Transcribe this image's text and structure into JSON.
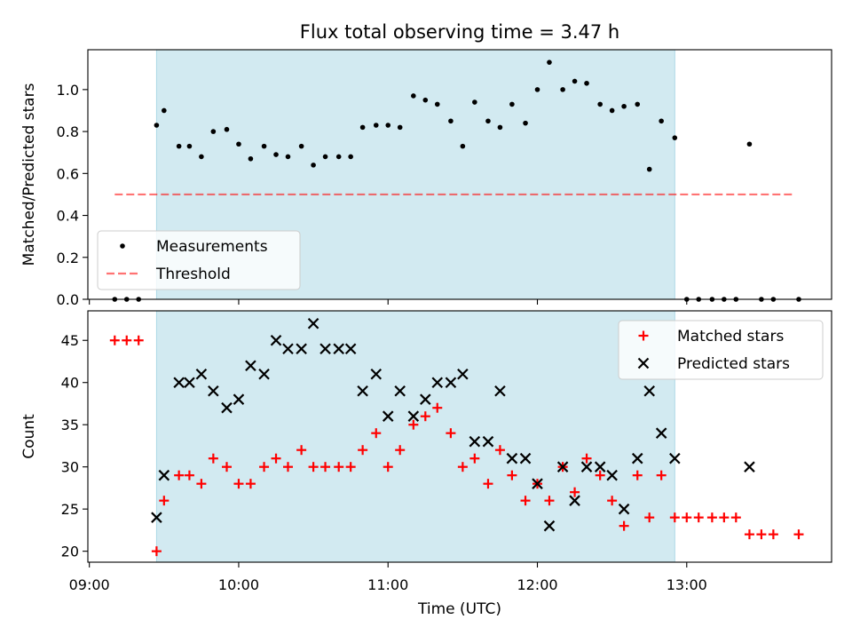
{
  "title": "Flux total observing time = 3.47 h",
  "x_axis": {
    "label": "Time (UTC)",
    "range_hours": [
      8.99,
      13.97
    ],
    "ticks": [
      {
        "value": 9,
        "label": "09:00"
      },
      {
        "value": 10,
        "label": "10:00"
      },
      {
        "value": 11,
        "label": "11:00"
      },
      {
        "value": 12,
        "label": "12:00"
      },
      {
        "value": 13,
        "label": "13:00"
      }
    ]
  },
  "observing_window_hours": [
    9.45,
    12.92
  ],
  "colors": {
    "window": "#add8e6",
    "measurements": "#000000",
    "threshold": "#ff0000",
    "matched": "#ff0000",
    "predicted": "#000000"
  },
  "chart_data": [
    {
      "type": "scatter",
      "ylabel": "Matched/Predicted stars",
      "ylim": [
        0,
        1.19
      ],
      "yticks": [
        "0.0",
        "0.2",
        "0.4",
        "0.6",
        "0.8",
        "1.0"
      ],
      "ytick_values": [
        0,
        0.2,
        0.4,
        0.6,
        0.8,
        1.0
      ],
      "legend_position": "lower-left",
      "series": [
        {
          "name": "Measurements",
          "marker": "dot",
          "x": [
            9.17,
            9.25,
            9.33,
            9.45,
            9.5,
            9.6,
            9.67,
            9.75,
            9.83,
            9.92,
            10.0,
            10.08,
            10.17,
            10.25,
            10.33,
            10.42,
            10.5,
            10.58,
            10.67,
            10.75,
            10.83,
            10.92,
            11.0,
            11.08,
            11.17,
            11.25,
            11.33,
            11.42,
            11.5,
            11.58,
            11.67,
            11.75,
            11.83,
            11.92,
            12.0,
            12.08,
            12.17,
            12.25,
            12.33,
            12.42,
            12.5,
            12.58,
            12.67,
            12.75,
            12.83,
            12.92,
            13.0,
            13.08,
            13.17,
            13.25,
            13.33,
            13.42,
            13.5,
            13.58,
            13.75
          ],
          "y": [
            0,
            0,
            0,
            0.83,
            0.9,
            0.73,
            0.73,
            0.68,
            0.8,
            0.81,
            0.74,
            0.67,
            0.73,
            0.69,
            0.68,
            0.73,
            0.64,
            0.68,
            0.68,
            0.68,
            0.82,
            0.83,
            0.83,
            0.82,
            0.97,
            0.95,
            0.93,
            0.85,
            0.73,
            0.94,
            0.85,
            0.82,
            0.93,
            0.84,
            1.0,
            1.13,
            1.0,
            1.04,
            1.03,
            0.93,
            0.9,
            0.92,
            0.93,
            0.62,
            0.85,
            0.77,
            0,
            0,
            0,
            0,
            0,
            0.74,
            0,
            0,
            0
          ]
        },
        {
          "name": "Threshold",
          "marker": "dashed-line",
          "x": [
            9.17,
            13.72
          ],
          "y": [
            0.5,
            0.5
          ]
        }
      ]
    },
    {
      "type": "scatter",
      "ylabel": "Count",
      "ylim": [
        18.7,
        48.5
      ],
      "yticks": [
        "20",
        "25",
        "30",
        "35",
        "40",
        "45"
      ],
      "ytick_values": [
        20,
        25,
        30,
        35,
        40,
        45
      ],
      "legend_position": "upper-right",
      "series": [
        {
          "name": "Matched stars",
          "marker": "plus",
          "x": [
            9.17,
            9.25,
            9.33,
            9.45,
            9.5,
            9.6,
            9.67,
            9.75,
            9.83,
            9.92,
            10.0,
            10.08,
            10.17,
            10.25,
            10.33,
            10.42,
            10.5,
            10.58,
            10.67,
            10.75,
            10.83,
            10.92,
            11.0,
            11.08,
            11.17,
            11.25,
            11.33,
            11.42,
            11.5,
            11.58,
            11.67,
            11.75,
            11.83,
            11.92,
            12.0,
            12.08,
            12.17,
            12.25,
            12.33,
            12.42,
            12.5,
            12.58,
            12.67,
            12.75,
            12.83,
            12.92,
            13.0,
            13.08,
            13.17,
            13.25,
            13.33,
            13.42,
            13.5,
            13.58,
            13.75
          ],
          "y": [
            45,
            45,
            45,
            20,
            26,
            29,
            29,
            28,
            31,
            30,
            28,
            28,
            30,
            31,
            30,
            32,
            30,
            30,
            30,
            30,
            32,
            34,
            30,
            32,
            35,
            36,
            37,
            34,
            30,
            31,
            28,
            32,
            29,
            26,
            28,
            26,
            30,
            27,
            31,
            29,
            26,
            23,
            29,
            24,
            29,
            24,
            24,
            24,
            24,
            24,
            24,
            22,
            22,
            22,
            22
          ]
        },
        {
          "name": "Predicted stars",
          "marker": "x",
          "x": [
            9.45,
            9.5,
            9.6,
            9.67,
            9.75,
            9.83,
            9.92,
            10.0,
            10.08,
            10.17,
            10.25,
            10.33,
            10.42,
            10.5,
            10.58,
            10.67,
            10.75,
            10.83,
            10.92,
            11.0,
            11.08,
            11.17,
            11.25,
            11.33,
            11.42,
            11.5,
            11.58,
            11.67,
            11.75,
            11.83,
            11.92,
            12.0,
            12.08,
            12.17,
            12.25,
            12.33,
            12.42,
            12.5,
            12.58,
            12.67,
            12.75,
            12.83,
            12.92,
            13.42
          ],
          "y": [
            24,
            29,
            40,
            40,
            41,
            39,
            37,
            38,
            42,
            41,
            45,
            44,
            44,
            47,
            44,
            44,
            44,
            39,
            41,
            36,
            39,
            36,
            38,
            40,
            40,
            41,
            33,
            33,
            39,
            31,
            31,
            28,
            23,
            30,
            26,
            30,
            30,
            29,
            25,
            31,
            39,
            34,
            31,
            30
          ]
        }
      ]
    }
  ]
}
